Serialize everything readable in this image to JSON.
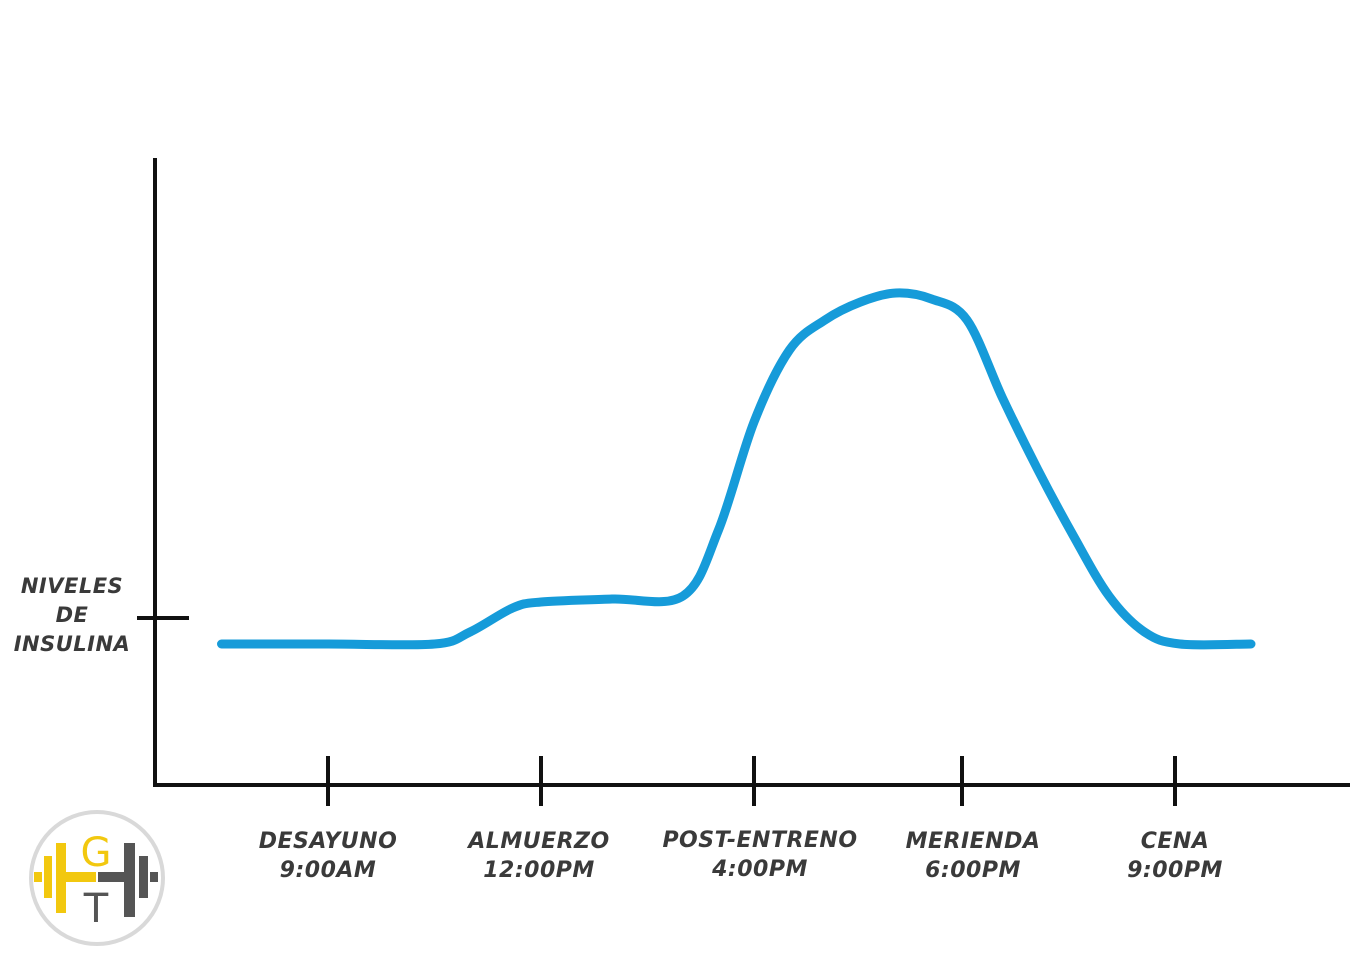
{
  "chart_data": {
    "type": "line",
    "title": "",
    "xlabel": "",
    "ylabel": "NIVELES DE INSULINA",
    "ylabel_lines": [
      "NIVELES",
      "DE",
      "INSULINA"
    ],
    "ylim": [
      0,
      10
    ],
    "grid": false,
    "legend": "none",
    "categories": [
      {
        "name": "DESAYUNO",
        "time": "9:00AM"
      },
      {
        "name": "ALMUERZO",
        "time": "12:00PM"
      },
      {
        "name": "POST-ENTRENO",
        "time": "4:00PM"
      },
      {
        "name": "MERIENDA",
        "time": "6:00PM"
      },
      {
        "name": "CENA",
        "time": "9:00PM"
      }
    ],
    "series": [
      {
        "color": "#169bd9",
        "points": [
          {
            "x": 7.5,
            "y": 1.6
          },
          {
            "x": 9.0,
            "y": 1.6
          },
          {
            "x": 10.5,
            "y": 1.6
          },
          {
            "x": 11.0,
            "y": 1.8
          },
          {
            "x": 11.6,
            "y": 2.2
          },
          {
            "x": 12.0,
            "y": 2.3
          },
          {
            "x": 13.0,
            "y": 2.35
          },
          {
            "x": 14.0,
            "y": 2.4
          },
          {
            "x": 14.5,
            "y": 3.5
          },
          {
            "x": 15.0,
            "y": 5.3
          },
          {
            "x": 15.5,
            "y": 6.5
          },
          {
            "x": 16.0,
            "y": 7.0
          },
          {
            "x": 16.5,
            "y": 7.3
          },
          {
            "x": 17.0,
            "y": 7.45
          },
          {
            "x": 17.5,
            "y": 7.35
          },
          {
            "x": 18.0,
            "y": 7.0
          },
          {
            "x": 18.5,
            "y": 5.7
          },
          {
            "x": 19.0,
            "y": 4.5
          },
          {
            "x": 19.5,
            "y": 3.4
          },
          {
            "x": 20.0,
            "y": 2.4
          },
          {
            "x": 20.5,
            "y": 1.8
          },
          {
            "x": 21.0,
            "y": 1.6
          },
          {
            "x": 22.0,
            "y": 1.6
          }
        ]
      }
    ]
  },
  "logo": {
    "letters": [
      "G",
      "T"
    ],
    "colors": {
      "yellow": "#f2c80f",
      "gray": "#555555"
    }
  }
}
